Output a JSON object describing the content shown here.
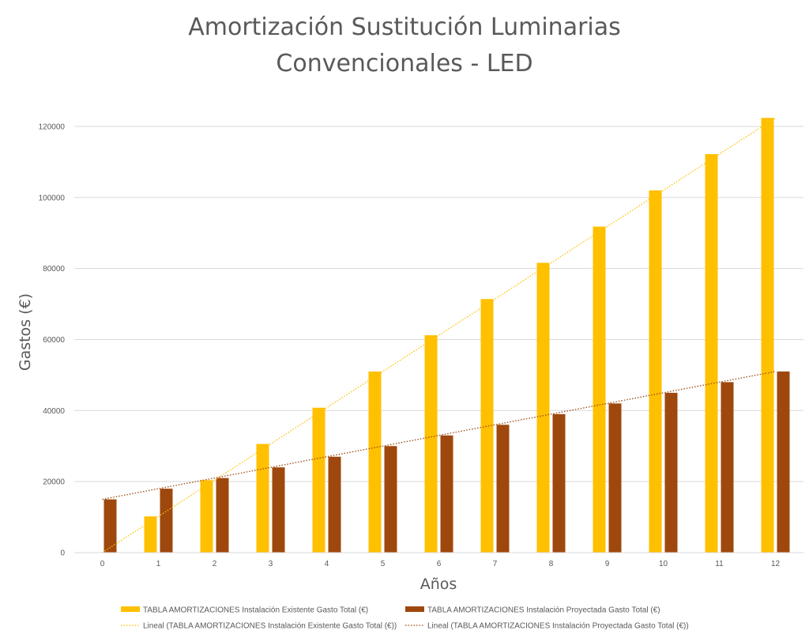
{
  "chart_data": {
    "type": "bar",
    "title_lines": [
      "Amortización Sustitución Luminarias",
      "Convencionales - LED"
    ],
    "xlabel": "Años",
    "ylabel": "Gastos (€)",
    "categories": [
      "0",
      "1",
      "2",
      "3",
      "4",
      "5",
      "6",
      "7",
      "8",
      "9",
      "10",
      "11",
      "12"
    ],
    "yticks": [
      "0",
      "20000",
      "40000",
      "60000",
      "80000",
      "100000",
      "120000"
    ],
    "ylim": [
      0,
      130000
    ],
    "grid": true,
    "legend_position": "bottom",
    "series": [
      {
        "name": "TABLA AMORTIZACIONES Instalación Existente Gasto Total (€)",
        "color": "#FFC000",
        "values": [
          0,
          10200,
          20400,
          30600,
          40800,
          51000,
          61200,
          71400,
          81600,
          91800,
          102000,
          112200,
          122400
        ]
      },
      {
        "name": "TABLA AMORTIZACIONES Instalación Proyectada Gasto Total (€)",
        "color": "#9E480E",
        "values": [
          15000,
          18000,
          21000,
          24000,
          27000,
          30000,
          33000,
          36000,
          39000,
          42000,
          45000,
          48000,
          51000
        ]
      }
    ],
    "trendlines": [
      {
        "name": "Lineal (TABLA AMORTIZACIONES Instalación Existente Gasto Total (€))",
        "color": "#FFC000",
        "style": "dotted",
        "series_index": 0
      },
      {
        "name": "Lineal (TABLA AMORTIZACIONES Instalación Proyectada Gasto Total (€))",
        "color": "#9E480E",
        "style": "dotted",
        "series_index": 1
      }
    ]
  }
}
